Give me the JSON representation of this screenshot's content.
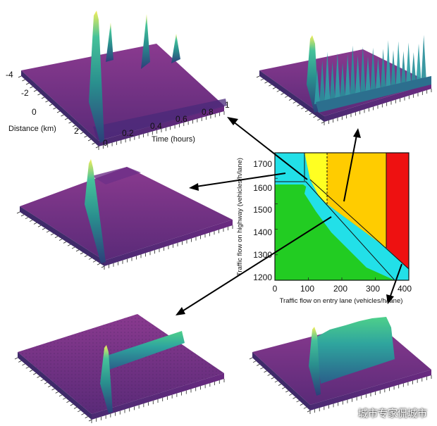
{
  "phase_diagram": {
    "xlabel": "Traffic flow on entry lane (vehicles/h/lane)",
    "ylabel": "Traffic flow on highway (vehicles/h/lane)",
    "xticks": [
      "0",
      "100",
      "200",
      "300",
      "400"
    ],
    "yticks": [
      "1200",
      "1300",
      "1400",
      "1500",
      "1600",
      "1700"
    ],
    "colors": {
      "green": "#22cc22",
      "cyan": "#22e0e8",
      "yellow": "#ffff22",
      "orange": "#ffcc00",
      "red": "#ee1111"
    }
  },
  "surface_plot": {
    "distance_label": "Distance (km)",
    "time_label": "Time (hours)",
    "distance_ticks": [
      "-4",
      "-2",
      "0",
      "2"
    ],
    "time_ticks": [
      "0",
      "0.2",
      "0.4",
      "0.6",
      "0.8",
      "1"
    ],
    "colors": {
      "surface": "#7a2f86",
      "surface_dark": "#3f2a6a",
      "peak_low": "#2a7f8e",
      "peak_mid": "#2fb7a0",
      "peak_high": "#f6f25a"
    }
  },
  "watermark": "城市专家侃城市"
}
